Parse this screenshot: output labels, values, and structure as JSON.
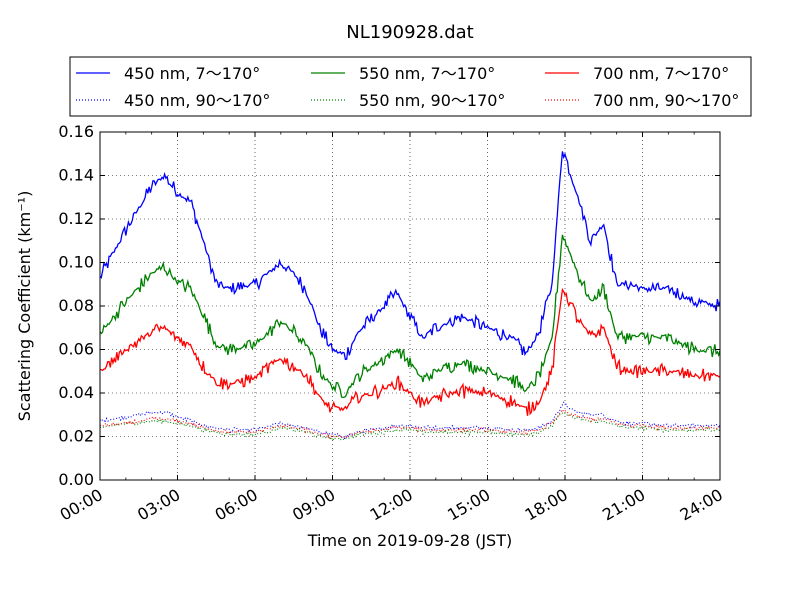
{
  "chart_data": {
    "type": "line",
    "title": "NL190928.dat",
    "xlabel": "Time on 2019-09-28 (JST)",
    "ylabel": "Scattering Coefficient (km⁻¹)",
    "xlim": [
      "00:00",
      "24:00"
    ],
    "ylim": [
      0,
      0.16
    ],
    "grid": true,
    "legend_position": "top",
    "x_ticks": [
      "00:00",
      "03:00",
      "06:00",
      "09:00",
      "12:00",
      "15:00",
      "18:00",
      "21:00",
      "24:00"
    ],
    "y_ticks": [
      "0.00",
      "0.02",
      "0.04",
      "0.06",
      "0.08",
      "0.10",
      "0.12",
      "0.14",
      "0.16"
    ],
    "x_hours": [
      0,
      1,
      2,
      2.5,
      3,
      3.5,
      4,
      4.5,
      5,
      6,
      7,
      7.5,
      8,
      8.5,
      9,
      9.5,
      10,
      11,
      11.5,
      12,
      12.5,
      13,
      14,
      15,
      16,
      16.5,
      17,
      17.5,
      17.9,
      18.5,
      19,
      19.5,
      20,
      20.5,
      21,
      22,
      23,
      24
    ],
    "series": [
      {
        "name": "450 nm, 7～170°",
        "color": "#0000ff",
        "style": "solid",
        "values": [
          0.093,
          0.115,
          0.135,
          0.14,
          0.132,
          0.128,
          0.11,
          0.09,
          0.088,
          0.09,
          0.1,
          0.095,
          0.087,
          0.07,
          0.06,
          0.057,
          0.068,
          0.08,
          0.086,
          0.075,
          0.065,
          0.07,
          0.075,
          0.07,
          0.065,
          0.058,
          0.068,
          0.09,
          0.153,
          0.13,
          0.11,
          0.118,
          0.09,
          0.09,
          0.088,
          0.088,
          0.082,
          0.08
        ]
      },
      {
        "name": "450 nm, 90～170°",
        "color": "#0000ff",
        "style": "dotted",
        "values": [
          0.027,
          0.029,
          0.031,
          0.031,
          0.029,
          0.027,
          0.025,
          0.024,
          0.023,
          0.023,
          0.026,
          0.025,
          0.024,
          0.022,
          0.021,
          0.02,
          0.022,
          0.024,
          0.025,
          0.025,
          0.024,
          0.024,
          0.024,
          0.024,
          0.023,
          0.023,
          0.024,
          0.027,
          0.035,
          0.031,
          0.03,
          0.03,
          0.027,
          0.026,
          0.026,
          0.025,
          0.025,
          0.025
        ]
      },
      {
        "name": "550 nm, 7～170°",
        "color": "#008000",
        "style": "solid",
        "values": [
          0.067,
          0.082,
          0.095,
          0.098,
          0.091,
          0.088,
          0.076,
          0.062,
          0.06,
          0.062,
          0.073,
          0.068,
          0.062,
          0.05,
          0.043,
          0.04,
          0.048,
          0.056,
          0.06,
          0.054,
          0.046,
          0.05,
          0.054,
          0.05,
          0.046,
          0.041,
          0.048,
          0.065,
          0.113,
          0.095,
          0.082,
          0.088,
          0.066,
          0.066,
          0.066,
          0.065,
          0.06,
          0.059
        ]
      },
      {
        "name": "550 nm, 90～170°",
        "color": "#008000",
        "style": "dotted",
        "values": [
          0.024,
          0.026,
          0.027,
          0.027,
          0.026,
          0.025,
          0.023,
          0.022,
          0.021,
          0.021,
          0.024,
          0.023,
          0.022,
          0.02,
          0.019,
          0.019,
          0.021,
          0.022,
          0.023,
          0.023,
          0.022,
          0.022,
          0.022,
          0.022,
          0.021,
          0.021,
          0.022,
          0.025,
          0.031,
          0.028,
          0.027,
          0.027,
          0.025,
          0.024,
          0.024,
          0.023,
          0.023,
          0.023
        ]
      },
      {
        "name": "700 nm, 7～170°",
        "color": "#ff0000",
        "style": "solid",
        "values": [
          0.05,
          0.06,
          0.068,
          0.07,
          0.065,
          0.062,
          0.052,
          0.045,
          0.044,
          0.047,
          0.056,
          0.052,
          0.048,
          0.038,
          0.032,
          0.033,
          0.038,
          0.042,
          0.045,
          0.04,
          0.035,
          0.038,
          0.041,
          0.04,
          0.036,
          0.032,
          0.036,
          0.05,
          0.088,
          0.074,
          0.066,
          0.07,
          0.052,
          0.05,
          0.05,
          0.05,
          0.048,
          0.048
        ]
      },
      {
        "name": "700 nm, 90～170°",
        "color": "#ff0000",
        "style": "dotted",
        "values": [
          0.025,
          0.026,
          0.028,
          0.028,
          0.027,
          0.026,
          0.024,
          0.023,
          0.022,
          0.022,
          0.025,
          0.024,
          0.023,
          0.021,
          0.02,
          0.02,
          0.022,
          0.023,
          0.024,
          0.024,
          0.023,
          0.023,
          0.023,
          0.023,
          0.022,
          0.022,
          0.023,
          0.026,
          0.032,
          0.029,
          0.028,
          0.028,
          0.026,
          0.025,
          0.025,
          0.024,
          0.024,
          0.024
        ]
      }
    ]
  }
}
